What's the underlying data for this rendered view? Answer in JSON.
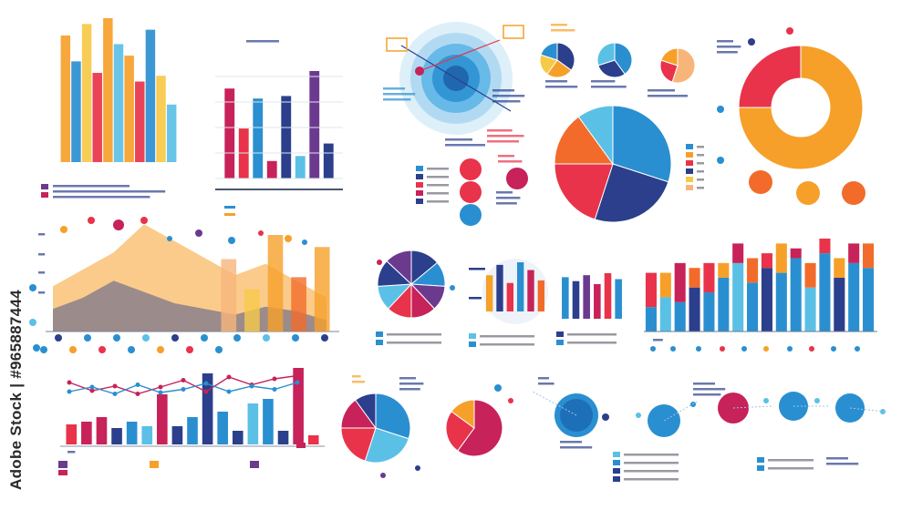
{
  "watermark": "Adobe Stock | #965887444",
  "palette": {
    "blue": "#2a8fd0",
    "navy": "#2b3f8c",
    "lightblue": "#5bc0e6",
    "orange": "#f6a02a",
    "darkorange": "#f26b2a",
    "red": "#e8334a",
    "crimson": "#c72259",
    "purple": "#6b3a8f",
    "yellow": "#f7c948",
    "peach": "#f7b57a"
  },
  "chart_data": [
    {
      "type": "bar",
      "series": [
        {
          "values": [
            88,
            70,
            96,
            62,
            100,
            82,
            74,
            56,
            92,
            60,
            40
          ]
        }
      ]
    },
    {
      "type": "bar",
      "series": [
        {
          "values": [
            72,
            40,
            64,
            14,
            66,
            18,
            86,
            28
          ]
        }
      ]
    },
    {
      "type": "pie",
      "values": [
        35,
        25,
        20,
        20
      ]
    },
    {
      "type": "pie",
      "values": [
        40,
        30,
        30
      ]
    },
    {
      "type": "pie",
      "values": [
        55,
        25,
        20
      ]
    },
    {
      "type": "pie",
      "values": [
        30,
        25,
        20,
        15,
        10
      ]
    },
    {
      "type": "pie",
      "values": [
        75,
        25
      ]
    },
    {
      "type": "area",
      "series": [
        {
          "values": [
            40,
            55,
            70,
            95,
            80,
            65,
            50,
            60,
            45,
            30
          ]
        },
        {
          "values": [
            20,
            30,
            45,
            35,
            25,
            20,
            15,
            22,
            18,
            10
          ]
        }
      ]
    },
    {
      "type": "bar",
      "series": [
        {
          "values": [
            60,
            35,
            80,
            45,
            70
          ]
        }
      ]
    },
    {
      "type": "pie",
      "values": [
        14,
        12,
        12,
        12,
        12,
        12,
        13,
        13
      ]
    },
    {
      "type": "bar",
      "series": [
        {
          "values": [
            70,
            90,
            55,
            95,
            80,
            60
          ]
        }
      ]
    },
    {
      "type": "bar",
      "series": [
        {
          "values": [
            42,
            38,
            44,
            35,
            46,
            40
          ]
        }
      ]
    },
    {
      "type": "bar",
      "series": [
        {
          "values": [
            25,
            35,
            30,
            45,
            40,
            55,
            70,
            50,
            65,
            60,
            75,
            45,
            80,
            55,
            70,
            65
          ]
        },
        {
          "values": [
            35,
            25,
            40,
            20,
            30,
            15,
            20,
            25,
            15,
            30,
            10,
            25,
            15,
            20,
            20,
            25
          ]
        }
      ]
    },
    {
      "type": "bar",
      "series": [
        {
          "values": [
            22,
            25,
            30,
            18,
            25,
            20,
            55,
            20,
            30,
            78,
            36,
            15,
            45,
            50,
            15,
            84,
            10
          ]
        }
      ]
    },
    {
      "type": "line",
      "series": [
        {
          "values": [
            80,
            62,
            72,
            55,
            70,
            85,
            60,
            92,
            75,
            88,
            95
          ]
        },
        {
          "values": [
            60,
            70,
            55,
            75,
            58,
            65,
            78,
            60,
            72,
            65,
            80
          ]
        }
      ]
    },
    {
      "type": "pie",
      "values": [
        30,
        25,
        20,
        15,
        10
      ]
    },
    {
      "type": "pie",
      "values": [
        60,
        25,
        15
      ]
    }
  ]
}
